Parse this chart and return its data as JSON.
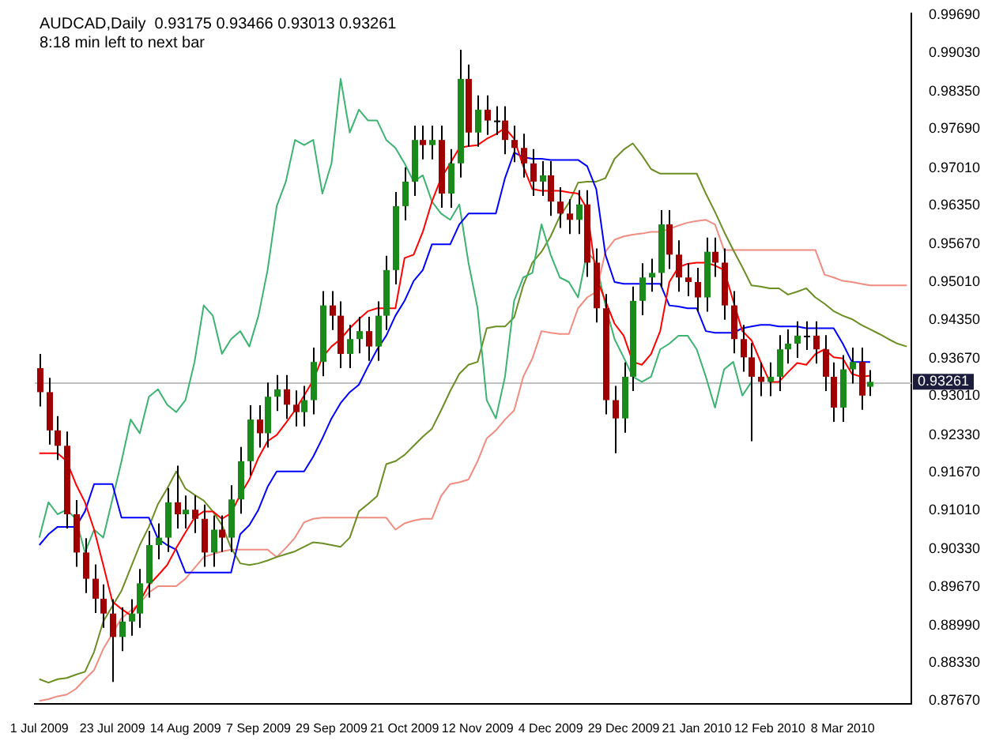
{
  "chart_data": {
    "type": "candlestick",
    "title": "AUDCAD,Daily  0.93175 0.93466 0.93013 0.93261",
    "annotations": [
      "8:18 min left to next bar"
    ],
    "categories": [
      "1 Jul 2009",
      null,
      null,
      null,
      null,
      null,
      null,
      null,
      "23 Jul 2009",
      null,
      null,
      null,
      null,
      null,
      null,
      null,
      "14 Aug 2009",
      null,
      null,
      null,
      null,
      null,
      null,
      null,
      "7 Sep 2009",
      null,
      null,
      null,
      null,
      null,
      null,
      null,
      "29 Sep 2009",
      null,
      null,
      null,
      null,
      null,
      null,
      null,
      "21 Oct 2009",
      null,
      null,
      null,
      null,
      null,
      null,
      null,
      "12 Nov 2009",
      null,
      null,
      null,
      null,
      null,
      null,
      null,
      "4 Dec 2009",
      null,
      null,
      null,
      null,
      null,
      null,
      null,
      "29 Dec 2009",
      null,
      null,
      null,
      null,
      null,
      null,
      null,
      "21 Jan 2010",
      null,
      null,
      null,
      null,
      null,
      null,
      null,
      "12 Feb 2010",
      null,
      null,
      null,
      null,
      null,
      null,
      null,
      "8 Mar 2010",
      null,
      null,
      null,
      null,
      null,
      null,
      null
    ],
    "ohlc": [
      [
        0.935,
        0.9375,
        0.9283,
        0.9308
      ],
      [
        0.9308,
        0.9333,
        0.9216,
        0.9241
      ],
      [
        0.9241,
        0.9266,
        0.9189,
        0.9214
      ],
      [
        0.9214,
        0.9239,
        0.9069,
        0.9094
      ],
      [
        0.9094,
        0.9119,
        0.9002,
        0.9027
      ],
      [
        0.9027,
        0.9052,
        0.8956,
        0.8981
      ],
      [
        0.8981,
        0.9006,
        0.8921,
        0.8946
      ],
      [
        0.8946,
        0.8971,
        0.8895,
        0.892
      ],
      [
        0.892,
        0.8945,
        0.88,
        0.8879
      ],
      [
        0.8879,
        0.8931,
        0.8854,
        0.8906
      ],
      [
        0.8906,
        0.8945,
        0.8881,
        0.892
      ],
      [
        0.892,
        0.8998,
        0.8895,
        0.8973
      ],
      [
        0.8973,
        0.9065,
        0.8948,
        0.904
      ],
      [
        0.904,
        0.9078,
        0.9015,
        0.9053
      ],
      [
        0.9053,
        0.914,
        0.9028,
        0.9115
      ],
      [
        0.9115,
        0.9179,
        0.9069,
        0.9094
      ],
      [
        0.9094,
        0.9127,
        0.9069,
        0.9102
      ],
      [
        0.9102,
        0.9127,
        0.9061,
        0.9086
      ],
      [
        0.9086,
        0.9111,
        0.9002,
        0.9027
      ],
      [
        0.9027,
        0.9092,
        0.9002,
        0.9067
      ],
      [
        0.9067,
        0.9092,
        0.9028,
        0.9053
      ],
      [
        0.9053,
        0.9145,
        0.9028,
        0.912
      ],
      [
        0.912,
        0.9212,
        0.9095,
        0.9187
      ],
      [
        0.9187,
        0.9285,
        0.9162,
        0.926
      ],
      [
        0.926,
        0.9285,
        0.9211,
        0.9236
      ],
      [
        0.9236,
        0.9325,
        0.9211,
        0.93
      ],
      [
        0.93,
        0.9338,
        0.9275,
        0.9313
      ],
      [
        0.9313,
        0.9338,
        0.9261,
        0.9286
      ],
      [
        0.9286,
        0.9311,
        0.9248,
        0.9273
      ],
      [
        0.9273,
        0.9319,
        0.9248,
        0.9294
      ],
      [
        0.9294,
        0.9386,
        0.9269,
        0.9361
      ],
      [
        0.9361,
        0.9485,
        0.9336,
        0.946
      ],
      [
        0.946,
        0.9485,
        0.9417,
        0.9442
      ],
      [
        0.9442,
        0.9467,
        0.935,
        0.9375
      ],
      [
        0.9375,
        0.9426,
        0.935,
        0.9401
      ],
      [
        0.9401,
        0.944,
        0.9376,
        0.9415
      ],
      [
        0.9415,
        0.944,
        0.9363,
        0.9388
      ],
      [
        0.9388,
        0.9467,
        0.9363,
        0.9442
      ],
      [
        0.9442,
        0.9547,
        0.9417,
        0.9522
      ],
      [
        0.9522,
        0.9659,
        0.9497,
        0.9634
      ],
      [
        0.9634,
        0.9702,
        0.9609,
        0.9677
      ],
      [
        0.9677,
        0.9775,
        0.9652,
        0.975
      ],
      [
        0.975,
        0.9775,
        0.9716,
        0.9741
      ],
      [
        0.9741,
        0.9775,
        0.9716,
        0.975
      ],
      [
        0.975,
        0.9775,
        0.9631,
        0.9656
      ],
      [
        0.9656,
        0.9734,
        0.9631,
        0.9709
      ],
      [
        0.9709,
        0.9908,
        0.9684,
        0.9857
      ],
      [
        0.9857,
        0.9882,
        0.9738,
        0.9763
      ],
      [
        0.9763,
        0.9828,
        0.9738,
        0.9803
      ],
      [
        0.9803,
        0.9828,
        0.9759,
        0.9784
      ],
      [
        0.9784,
        0.9809,
        0.9759,
        0.9784
      ],
      [
        0.9784,
        0.9809,
        0.9725,
        0.975
      ],
      [
        0.975,
        0.9775,
        0.9711,
        0.9736
      ],
      [
        0.9736,
        0.9761,
        0.9684,
        0.9709
      ],
      [
        0.9709,
        0.9734,
        0.9652,
        0.9677
      ],
      [
        0.9677,
        0.9713,
        0.9652,
        0.9688
      ],
      [
        0.9688,
        0.9713,
        0.9617,
        0.9642
      ],
      [
        0.9642,
        0.9667,
        0.9596,
        0.9621
      ],
      [
        0.9621,
        0.9646,
        0.9585,
        0.961
      ],
      [
        0.961,
        0.9662,
        0.9585,
        0.9637
      ],
      [
        0.9637,
        0.9662,
        0.951,
        0.9535
      ],
      [
        0.9535,
        0.956,
        0.943,
        0.9455
      ],
      [
        0.9455,
        0.948,
        0.9269,
        0.9294
      ],
      [
        0.9294,
        0.9319,
        0.9201,
        0.9262
      ],
      [
        0.9262,
        0.936,
        0.9237,
        0.9335
      ],
      [
        0.9335,
        0.9493,
        0.931,
        0.9468
      ],
      [
        0.9468,
        0.9534,
        0.9443,
        0.9509
      ],
      [
        0.9509,
        0.9542,
        0.9484,
        0.9517
      ],
      [
        0.9517,
        0.9627,
        0.9492,
        0.9602
      ],
      [
        0.9602,
        0.9627,
        0.9524,
        0.9549
      ],
      [
        0.9549,
        0.9574,
        0.9484,
        0.9509
      ],
      [
        0.9509,
        0.9534,
        0.9476,
        0.9501
      ],
      [
        0.9501,
        0.9526,
        0.9449,
        0.9474
      ],
      [
        0.9474,
        0.9579,
        0.9449,
        0.9554
      ],
      [
        0.9554,
        0.9579,
        0.951,
        0.9535
      ],
      [
        0.9535,
        0.956,
        0.9435,
        0.946
      ],
      [
        0.946,
        0.9485,
        0.9376,
        0.9401
      ],
      [
        0.9401,
        0.9426,
        0.9344,
        0.9369
      ],
      [
        0.9369,
        0.9394,
        0.9222,
        0.9335
      ],
      [
        0.9335,
        0.936,
        0.9301,
        0.9326
      ],
      [
        0.9326,
        0.936,
        0.9301,
        0.9335
      ],
      [
        0.9335,
        0.9408,
        0.931,
        0.9383
      ],
      [
        0.9383,
        0.9418,
        0.9358,
        0.9393
      ],
      [
        0.9393,
        0.9432,
        0.9368,
        0.9407
      ],
      [
        0.9407,
        0.9432,
        0.9382,
        0.9407
      ],
      [
        0.9407,
        0.9432,
        0.9358,
        0.9383
      ],
      [
        0.9383,
        0.9408,
        0.931,
        0.9335
      ],
      [
        0.9335,
        0.936,
        0.9256,
        0.9281
      ],
      [
        0.9281,
        0.9373,
        0.9256,
        0.9348
      ],
      [
        0.9348,
        0.9386,
        0.9323,
        0.9361
      ],
      [
        0.9361,
        0.9386,
        0.9277,
        0.9302
      ],
      [
        0.93175,
        0.93466,
        0.93013,
        0.93261
      ],
      null,
      null,
      null,
      null
    ],
    "colors": [
      "#a00000",
      "#a00000",
      "#a00000",
      "#a00000",
      "#a00000",
      "#a00000",
      "#a00000",
      "#a00000",
      "#a00000",
      "#1a8a1a",
      "#1a8a1a",
      "#1a8a1a",
      "#1a8a1a",
      "#1a8a1a",
      "#1a8a1a",
      "#a00000",
      "#1a8a1a",
      "#a00000",
      "#a00000",
      "#1a8a1a",
      "#a00000",
      "#1a8a1a",
      "#1a8a1a",
      "#1a8a1a",
      "#a00000",
      "#1a8a1a",
      "#1a8a1a",
      "#a00000",
      "#a00000",
      "#1a8a1a",
      "#1a8a1a",
      "#1a8a1a",
      "#a00000",
      "#a00000",
      "#1a8a1a",
      "#1a8a1a",
      "#a00000",
      "#1a8a1a",
      "#1a8a1a",
      "#1a8a1a",
      "#1a8a1a",
      "#1a8a1a",
      "#a00000",
      "#1a8a1a",
      "#a00000",
      "#1a8a1a",
      "#1a8a1a",
      "#a00000",
      "#1a8a1a",
      "#a00000",
      "#000000",
      "#a00000",
      "#a00000",
      "#a00000",
      "#a00000",
      "#1a8a1a",
      "#a00000",
      "#a00000",
      "#a00000",
      "#1a8a1a",
      "#a00000",
      "#a00000",
      "#a00000",
      "#a00000",
      "#1a8a1a",
      "#1a8a1a",
      "#1a8a1a",
      "#1a8a1a",
      "#1a8a1a",
      "#a00000",
      "#a00000",
      "#a00000",
      "#a00000",
      "#1a8a1a",
      "#a00000",
      "#a00000",
      "#a00000",
      "#a00000",
      "#a00000",
      "#a00000",
      "#1a8a1a",
      "#1a8a1a",
      "#1a8a1a",
      "#1a8a1a",
      "#000000",
      "#a00000",
      "#a00000",
      "#a00000",
      "#1a8a1a",
      "#1a8a1a",
      "#a00000",
      "#1a8a1a",
      null,
      null,
      null,
      null
    ],
    "series": [
      {
        "type": "line",
        "color": "#ff0000",
        "values": [
          0.9201,
          0.9201,
          0.9201,
          0.9187,
          0.9147,
          0.9115,
          0.9067,
          0.9005,
          0.8941,
          0.8928,
          0.8917,
          0.8941,
          0.897,
          0.8987,
          0.9005,
          0.9035,
          0.9062,
          0.9088,
          0.9099,
          0.9099,
          0.9086,
          0.9096,
          0.9128,
          0.9155,
          0.9193,
          0.9222,
          0.9233,
          0.9254,
          0.9276,
          0.9302,
          0.9329,
          0.9369,
          0.9388,
          0.9401,
          0.942,
          0.9436,
          0.945,
          0.9455,
          0.9455,
          0.9455,
          0.9543,
          0.9549,
          0.9589,
          0.9642,
          0.9683,
          0.9709,
          0.9736,
          0.9739,
          0.9741,
          0.9752,
          0.976,
          0.9771,
          0.9752,
          0.9704,
          0.9664,
          0.9661,
          0.9661,
          0.9661,
          0.9658,
          0.9656,
          0.9629,
          0.9509,
          0.9468,
          0.9428,
          0.9407,
          0.9361,
          0.9356,
          0.9375,
          0.9415,
          0.9501,
          0.9527,
          0.9533,
          0.9535,
          0.9535,
          0.953,
          0.9522,
          0.9468,
          0.9415,
          0.9399,
          0.9361,
          0.9326,
          0.9326,
          0.9343,
          0.9359,
          0.9356,
          0.9375,
          0.9383,
          0.9369,
          0.9367,
          0.934,
          0.9335,
          0.9337,
          null,
          null,
          null,
          null
        ]
      },
      {
        "type": "line",
        "color": "#0000ff",
        "values": [
          0.904,
          0.9059,
          0.9072,
          0.9072,
          0.9072,
          0.9099,
          0.9147,
          0.9147,
          0.9147,
          0.9088,
          0.9088,
          0.9088,
          0.9088,
          0.9051,
          0.904,
          0.9032,
          0.8992,
          0.8992,
          0.8992,
          0.8992,
          0.8992,
          0.8992,
          0.9059,
          0.9075,
          0.9102,
          0.9142,
          0.9169,
          0.9169,
          0.9169,
          0.9169,
          0.9195,
          0.9227,
          0.9262,
          0.9289,
          0.9308,
          0.9321,
          0.9353,
          0.9383,
          0.9407,
          0.9442,
          0.9468,
          0.9503,
          0.9522,
          0.9567,
          0.9567,
          0.9567,
          0.9602,
          0.9621,
          0.9621,
          0.9621,
          0.9621,
          0.9683,
          0.9728,
          0.972,
          0.9717,
          0.9717,
          0.9715,
          0.9715,
          0.9715,
          0.9715,
          0.9704,
          0.9664,
          0.9549,
          0.9501,
          0.9498,
          0.9498,
          0.9498,
          0.9498,
          0.9498,
          0.946,
          0.9458,
          0.9455,
          0.9455,
          0.9415,
          0.9412,
          0.9412,
          0.9412,
          0.942,
          0.9423,
          0.9426,
          0.9426,
          0.9423,
          0.9423,
          0.9423,
          0.942,
          0.942,
          0.942,
          0.942,
          0.9393,
          0.9361,
          0.9361,
          0.9361,
          null,
          null,
          null,
          null
        ]
      },
      {
        "type": "line",
        "color": "#3cb371",
        "values": [
          0.9053,
          0.9115,
          0.9094,
          0.9102,
          0.9086,
          0.9027,
          0.9067,
          0.9053,
          0.912,
          0.9187,
          0.926,
          0.9236,
          0.93,
          0.9313,
          0.9286,
          0.9273,
          0.9294,
          0.9361,
          0.946,
          0.9442,
          0.9375,
          0.9401,
          0.9415,
          0.9388,
          0.9442,
          0.9522,
          0.9634,
          0.9677,
          0.975,
          0.9741,
          0.975,
          0.9656,
          0.9709,
          0.9857,
          0.9763,
          0.9803,
          0.9784,
          0.9784,
          0.975,
          0.9736,
          0.9709,
          0.9677,
          0.9688,
          0.9642,
          0.9621,
          0.961,
          0.9637,
          0.9535,
          0.9455,
          0.9294,
          0.9262,
          0.9335,
          0.9468,
          0.9509,
          0.9517,
          0.9602,
          0.9549,
          0.9509,
          0.9501,
          0.9474,
          0.9554,
          0.9535,
          0.946,
          0.9401,
          0.9369,
          0.9335,
          0.9326,
          0.9335,
          0.9383,
          0.9393,
          0.9407,
          0.9407,
          0.9383,
          0.9335,
          0.9281,
          0.9348,
          0.9361,
          0.9302,
          0.9326,
          null,
          null,
          null,
          null,
          null,
          null,
          null,
          null,
          null,
          null,
          null,
          null,
          null,
          null,
          null,
          null,
          null
        ]
      },
      {
        "type": "line",
        "color": "#6b8e23",
        "values": [
          0.8805,
          0.8799,
          0.8805,
          0.8807,
          0.8813,
          0.8818,
          0.8853,
          0.8906,
          0.8933,
          0.896,
          0.9,
          0.904,
          0.9072,
          0.9112,
          0.9139,
          0.9169,
          0.9139,
          0.9128,
          0.9118,
          0.9099,
          0.9075,
          0.9035,
          0.9008,
          0.9005,
          0.9008,
          0.9013,
          0.9019,
          0.9024,
          0.9029,
          0.9037,
          0.9045,
          0.9043,
          0.904,
          0.9037,
          0.9053,
          0.9099,
          0.9112,
          0.9126,
          0.9182,
          0.9187,
          0.9198,
          0.9214,
          0.923,
          0.9244,
          0.9276,
          0.931,
          0.934,
          0.9356,
          0.9361,
          0.942,
          0.9423,
          0.9423,
          0.9439,
          0.9495,
          0.9535,
          0.9554,
          0.9581,
          0.9616,
          0.964,
          0.9675,
          0.9677,
          0.9677,
          0.9683,
          0.9717,
          0.9733,
          0.9744,
          0.9723,
          0.9699,
          0.9691,
          0.9691,
          0.9691,
          0.9691,
          0.9691,
          0.9656,
          0.9624,
          0.9589,
          0.9557,
          0.9527,
          0.9495,
          0.9493,
          0.949,
          0.949,
          0.9479,
          0.9484,
          0.949,
          0.9474,
          0.9463,
          0.945,
          0.9442,
          0.9436,
          0.9426,
          0.9418,
          0.941,
          0.9401,
          0.9393,
          0.9388
        ]
      },
      {
        "type": "line",
        "color": "#f08c80",
        "values": [
          0.8767,
          0.877,
          0.8775,
          0.8778,
          0.8788,
          0.8805,
          0.8821,
          0.8858,
          0.8885,
          0.8912,
          0.8925,
          0.8938,
          0.8957,
          0.8968,
          0.8968,
          0.8968,
          0.8981,
          0.9,
          0.9019,
          0.9024,
          0.9029,
          0.9032,
          0.9032,
          0.9032,
          0.9032,
          0.9032,
          0.9019,
          0.9035,
          0.9053,
          0.908,
          0.9086,
          0.9088,
          0.9088,
          0.9088,
          0.9088,
          0.9088,
          0.9088,
          0.9088,
          0.9088,
          0.9067,
          0.9078,
          0.9083,
          0.9086,
          0.9086,
          0.9126,
          0.9147,
          0.915,
          0.9155,
          0.9187,
          0.9227,
          0.9241,
          0.926,
          0.9276,
          0.9335,
          0.9367,
          0.9415,
          0.9412,
          0.941,
          0.941,
          0.9455,
          0.9474,
          0.9484,
          0.9554,
          0.9575,
          0.9581,
          0.9584,
          0.9586,
          0.9589,
          0.9589,
          0.9594,
          0.96,
          0.9605,
          0.9608,
          0.961,
          0.9602,
          0.9557,
          0.9557,
          0.9557,
          0.9557,
          0.9557,
          0.9557,
          0.9557,
          0.9557,
          0.9557,
          0.9557,
          0.9557,
          0.9514,
          0.9509,
          0.9503,
          0.9501,
          0.9498,
          0.9495,
          0.9495,
          0.9495,
          0.9495,
          0.9495
        ]
      }
    ],
    "ylim": [
      0.8762,
      0.9972
    ],
    "yticks": [
      {
        "value": 0.9969,
        "label": "0.99690"
      },
      {
        "value": 0.9903,
        "label": "0.99030"
      },
      {
        "value": 0.9835,
        "label": "0.98350"
      },
      {
        "value": 0.9769,
        "label": "0.97690"
      },
      {
        "value": 0.9701,
        "label": "0.97010"
      },
      {
        "value": 0.9635,
        "label": "0.96350"
      },
      {
        "value": 0.9567,
        "label": "0.95670"
      },
      {
        "value": 0.9501,
        "label": "0.95010"
      },
      {
        "value": 0.9435,
        "label": "0.94350"
      },
      {
        "value": 0.9367,
        "label": "0.93670"
      },
      {
        "value": 0.9301,
        "label": "0.93010"
      },
      {
        "value": 0.9233,
        "label": "0.92330"
      },
      {
        "value": 0.9167,
        "label": "0.91670"
      },
      {
        "value": 0.9101,
        "label": "0.91010"
      },
      {
        "value": 0.9033,
        "label": "0.90330"
      },
      {
        "value": 0.8967,
        "label": "0.89670"
      },
      {
        "value": 0.8899,
        "label": "0.88990"
      },
      {
        "value": 0.8833,
        "label": "0.88330"
      },
      {
        "value": 0.8767,
        "label": "0.87670"
      }
    ],
    "ref_lines": [
      {
        "axis": "y",
        "value": 0.93261,
        "label": "0.93261",
        "color": "#c0c0c0"
      }
    ],
    "legend": false,
    "grid": false
  }
}
